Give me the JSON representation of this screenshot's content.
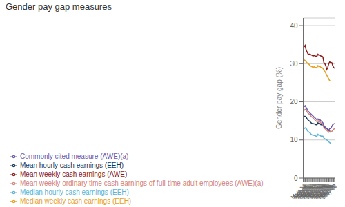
{
  "chart_data": {
    "type": "line",
    "title": "Gender pay gap measures",
    "ylabel": "Gender pay gap (%)",
    "categories": [
      "May-14",
      "Aug-14",
      "Nov-14",
      "Feb-15",
      "May-15",
      "Aug-15",
      "Nov-15",
      "Feb-16",
      "May-16",
      "Aug-16",
      "Nov-16",
      "Feb-17",
      "May-17",
      "Aug-17",
      "Nov-17",
      "Feb-18",
      "May-18",
      "Aug-18",
      "Nov-18",
      "Feb-19",
      "May-19",
      "Aug-19",
      "Nov-19",
      "Feb-20",
      "May-20",
      "Aug-20",
      "Nov-20",
      "Feb-21",
      "May-21",
      "Aug-21",
      "Nov-21",
      "Feb-22",
      "May-22"
    ],
    "series": [
      {
        "name": "Median hourly cash earnings (EEH)",
        "color": "#5ab4d6",
        "values": [
          13.0,
          13.0,
          13.2,
          13.0,
          12.5,
          12.2,
          12.0,
          11.8,
          11.5,
          11.3,
          11.3,
          11.2,
          11.2,
          11.0,
          11.0,
          11.5,
          11.2,
          11.3,
          11.0,
          11.0,
          11.0,
          10.5,
          10.3,
          10.2,
          10.0,
          9.8,
          9.5,
          9.3,
          9.0,
          null,
          null,
          null,
          null
        ]
      },
      {
        "name": "Mean hourly cash earnings (EEH)",
        "color": "#1a3a5c",
        "values": [
          16.0,
          16.2,
          16.2,
          16.0,
          15.5,
          15.2,
          15.0,
          14.8,
          14.5,
          14.3,
          14.3,
          14.2,
          14.2,
          14.0,
          14.0,
          14.5,
          14.2,
          14.3,
          14.0,
          14.0,
          14.0,
          13.5,
          13.3,
          13.2,
          13.0,
          12.8,
          12.5,
          12.3,
          12.0,
          null,
          null,
          null,
          null
        ]
      },
      {
        "name": "Median weekly cash earnings (EEH)",
        "color": "#e8a020",
        "values": [
          31.5,
          31.0,
          30.8,
          30.5,
          30.2,
          30.0,
          29.8,
          29.5,
          29.3,
          29.2,
          29.0,
          29.2,
          29.0,
          29.0,
          29.0,
          29.5,
          29.2,
          29.3,
          29.0,
          29.0,
          28.8,
          28.3,
          28.0,
          27.5,
          27.0,
          26.5,
          26.0,
          25.5,
          25.5,
          null,
          null,
          null,
          null
        ]
      },
      {
        "name": "Mean weekly cash earnings (AWE)",
        "color": "#8b1a1a",
        "values": [
          34.2,
          34.5,
          34.8,
          33.5,
          33.0,
          32.5,
          32.5,
          32.5,
          32.3,
          32.2,
          32.0,
          32.2,
          32.0,
          32.0,
          32.0,
          32.5,
          32.2,
          32.3,
          32.0,
          32.0,
          31.8,
          30.3,
          30.0,
          29.5,
          28.5,
          29.0,
          30.0,
          30.5,
          30.2,
          30.3,
          29.5,
          29.0,
          28.8
        ]
      },
      {
        "name": "Mean weekly ordinary time cash earnings of full-time adult employees (AWE)(a)",
        "color": "#d4827a",
        "values": [
          17.5,
          17.8,
          18.0,
          17.8,
          17.3,
          17.0,
          16.8,
          16.5,
          16.2,
          16.0,
          15.8,
          15.5,
          15.2,
          15.0,
          14.8,
          15.0,
          14.7,
          14.8,
          14.5,
          14.2,
          14.0,
          13.3,
          13.0,
          12.8,
          12.5,
          12.3,
          12.0,
          12.3,
          12.0,
          12.2,
          12.5,
          12.8,
          13.0
        ]
      },
      {
        "name": "Commonly cited measure (AWE)(a)",
        "color": "#6a5aaa",
        "values": [
          18.5,
          18.8,
          19.0,
          18.5,
          18.0,
          17.5,
          17.3,
          17.0,
          16.8,
          16.5,
          16.3,
          16.0,
          15.8,
          15.5,
          15.3,
          15.5,
          15.2,
          15.3,
          15.0,
          14.8,
          14.5,
          13.8,
          13.5,
          13.2,
          13.0,
          12.8,
          12.5,
          13.0,
          13.0,
          13.5,
          14.0,
          14.2,
          14.3
        ]
      }
    ],
    "ylim": [
      0,
      42
    ],
    "yticks": [
      0,
      10,
      20,
      30,
      40
    ],
    "grid": true,
    "legend": "bottom"
  }
}
